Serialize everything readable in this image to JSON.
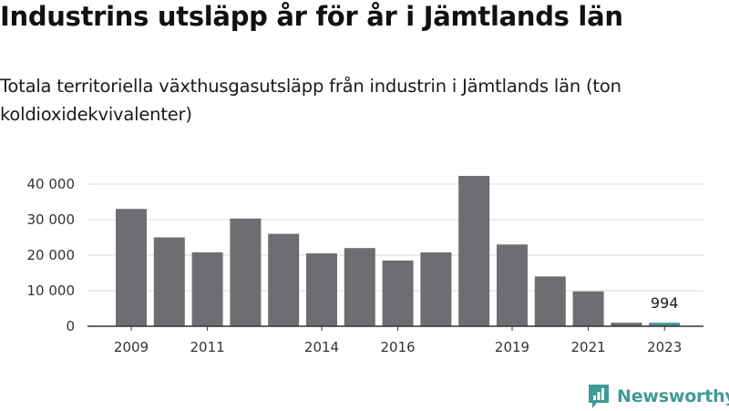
{
  "header": {
    "title": "Industrins utsläpp år för år i Jämtlands län",
    "subtitle": "Totala territoriella växthusgasutsläpp från industrin i Jämtlands län (ton koldioxidekvivalenter)"
  },
  "brand": {
    "name": "Newsworthy",
    "color": "#3f9b94"
  },
  "colors": {
    "bar": "#6e6d72",
    "highlight": "#3f9b94",
    "grid": "#d9d9d9",
    "axis": "#333333"
  },
  "chart_data": {
    "type": "bar",
    "categories": [
      "2009",
      "2010",
      "2011",
      "2012",
      "2013",
      "2014",
      "2015",
      "2016",
      "2017",
      "2018",
      "2019",
      "2020",
      "2021",
      "2022",
      "2023"
    ],
    "values": [
      33000,
      25000,
      20800,
      30300,
      26000,
      20500,
      22000,
      18500,
      20800,
      42300,
      23000,
      14000,
      9800,
      1000,
      994
    ],
    "highlight_index": 14,
    "data_labels": [
      {
        "index": 14,
        "text": "994"
      }
    ],
    "x_tick_labels": [
      "2009",
      "",
      "2011",
      "",
      "",
      "2014",
      "",
      "2016",
      "",
      "",
      "2019",
      "",
      "2021",
      "",
      "2023"
    ],
    "y_ticks": [
      0,
      10000,
      20000,
      30000,
      40000
    ],
    "y_tick_labels": [
      "0",
      "10 000",
      "20 000",
      "30 000",
      "40 000"
    ],
    "ylim": [
      0,
      42300
    ],
    "grid": true,
    "legend": "none"
  }
}
